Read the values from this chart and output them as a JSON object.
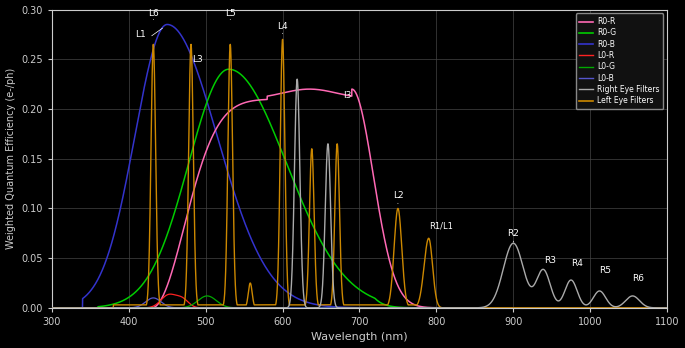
{
  "background_color": "#000000",
  "text_color": "#cccccc",
  "grid_color": "#444444",
  "xlim": [
    300,
    1100
  ],
  "ylim": [
    0,
    0.3
  ],
  "xlabel": "Wavelength (nm)",
  "ylabel": "Weighted Quantum Efficiency (e-/ph)",
  "xticks": [
    300,
    400,
    500,
    600,
    700,
    800,
    900,
    1000,
    1100
  ],
  "yticks": [
    0,
    0.05,
    0.1,
    0.15,
    0.2,
    0.25,
    0.3
  ],
  "r0r_color": "#ff69b4",
  "r0g_color": "#00cc00",
  "r0b_color": "#3333cc",
  "l0r_color": "#ff2222",
  "l0g_color": "#00aa00",
  "l0b_color": "#5555cc",
  "right_eye_color": "#aaaaaa",
  "left_eye_color": "#cc8800",
  "legend_loc": "upper right"
}
